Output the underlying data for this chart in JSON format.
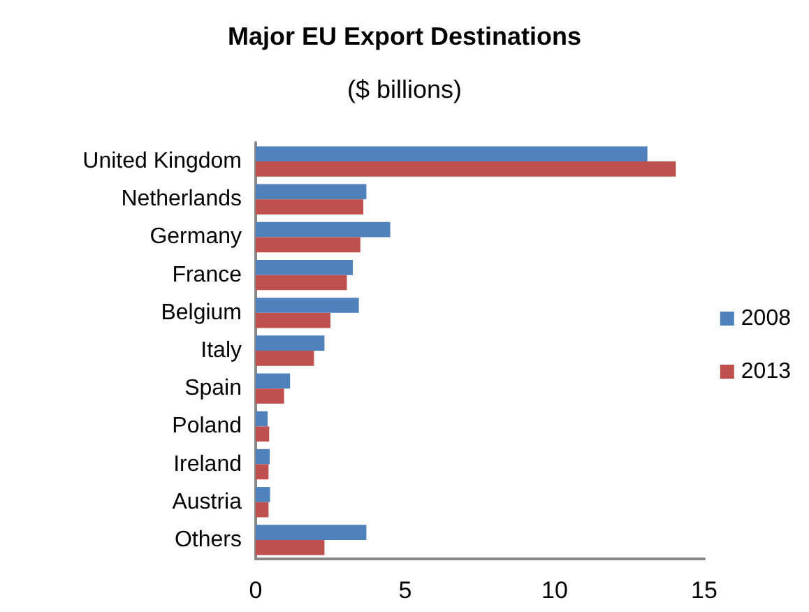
{
  "chart_data": {
    "type": "bar",
    "orientation": "horizontal",
    "title": "Major EU Export Destinations",
    "subtitle": "($ billions)",
    "categories": [
      "United Kingdom",
      "Netherlands",
      "Germany",
      "France",
      "Belgium",
      "Italy",
      "Spain",
      "Poland",
      "Ireland",
      "Austria",
      "Others"
    ],
    "series": [
      {
        "name": "2008",
        "color": "#4f81bd",
        "values": [
          13.1,
          3.7,
          4.5,
          3.25,
          3.45,
          2.3,
          1.15,
          0.4,
          0.47,
          0.48,
          3.7
        ]
      },
      {
        "name": "2013",
        "color": "#c0504d",
        "values": [
          14.05,
          3.6,
          3.5,
          3.05,
          2.5,
          1.95,
          0.95,
          0.45,
          0.43,
          0.43,
          2.3
        ]
      }
    ],
    "xlim": [
      0,
      15
    ],
    "xticks": [
      0,
      5,
      10,
      15
    ],
    "grid": false,
    "legend": "right"
  }
}
